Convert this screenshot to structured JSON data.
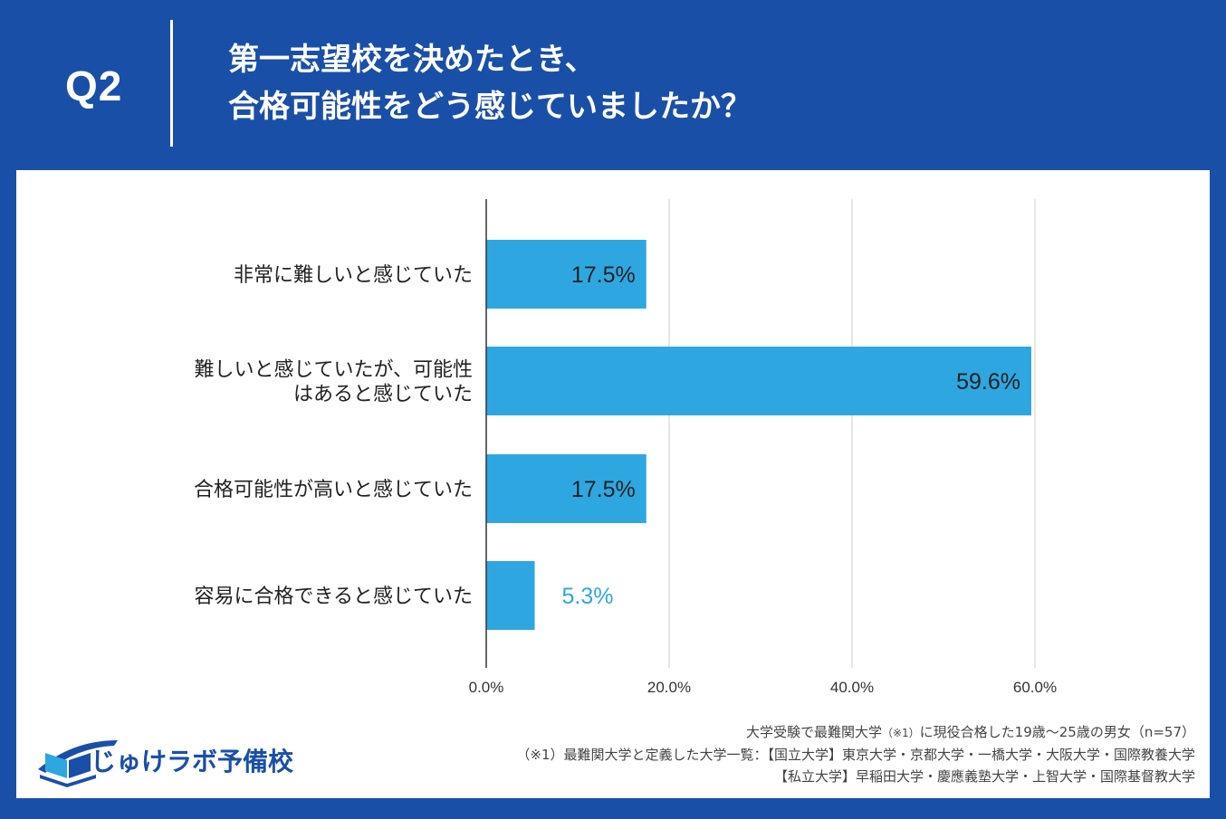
{
  "header": {
    "question_number": "Q2",
    "title_lines": [
      "第一志望校を決めたとき、",
      "合格可能性をどう感じていましたか？"
    ]
  },
  "colors": {
    "background": "#1a4fa8",
    "bar": "#2ea7e0",
    "panel": "#ffffff",
    "grid": "#cccccc"
  },
  "chart_data": {
    "type": "bar",
    "orientation": "horizontal",
    "categories": [
      [
        "非常に難しいと感じていた"
      ],
      [
        "難しいと感じていたが、可能性",
        "はあると感じていた"
      ],
      [
        "合格可能性が高いと感じていた"
      ],
      [
        "容易に合格できると感じていた"
      ]
    ],
    "values": [
      17.5,
      59.6,
      17.5,
      5.3
    ],
    "value_labels": [
      "17.5%",
      "59.6%",
      "17.5%",
      "5.3%"
    ],
    "xlim": [
      0,
      60
    ],
    "xticks": [
      0,
      20,
      40,
      60
    ],
    "xtick_labels": [
      "0.0%",
      "20.0%",
      "40.0%",
      "60.0%"
    ],
    "grid": true
  },
  "footer": {
    "logo_text": "じゅけラボ予備校",
    "note_line1_main": "大学受験で最難関大学",
    "note_line1_ref": "（※1）",
    "note_line1_tail": "に現役合格した19歳～25歳の男女（n=57）",
    "note_line2": "（※1）最難関大学と定義した大学一覧：【国立大学】東京大学・京都大学・一橋大学・大阪大学・国際教養大学",
    "note_line3": "【私立大学】早稲田大学・慶應義塾大学・上智大学・国際基督教大学"
  }
}
